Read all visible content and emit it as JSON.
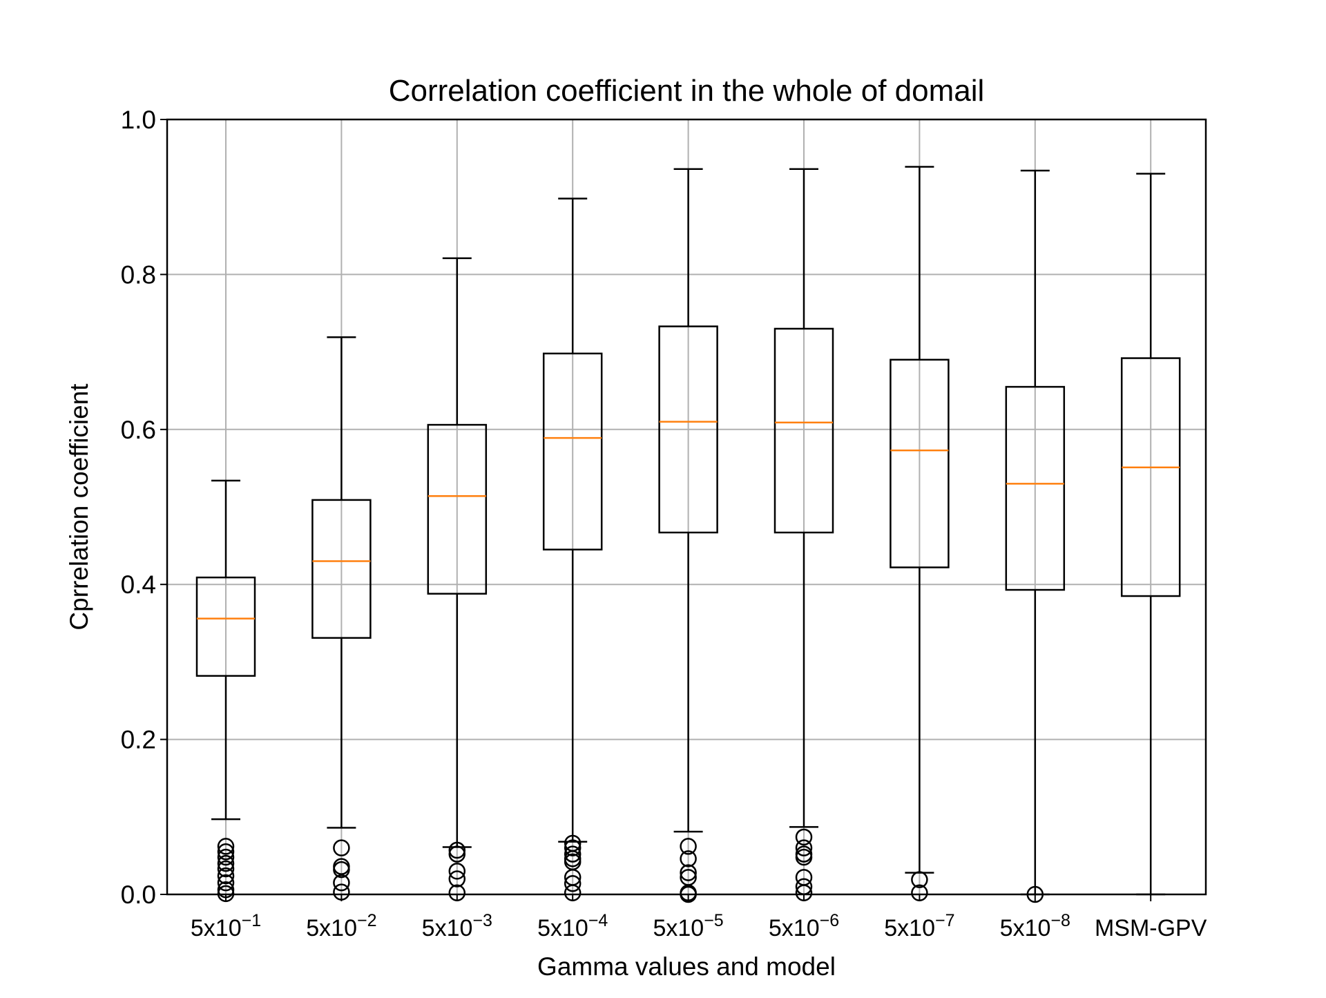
{
  "chart_data": {
    "type": "box",
    "title": "Correlation coefficient in the whole of domail",
    "xlabel": "Gamma values and model",
    "ylabel": "Cprrelation coefficient",
    "ylim": [
      0.0,
      1.0
    ],
    "yticks": [
      "0.0",
      "0.2",
      "0.4",
      "0.6",
      "0.8",
      "1.0"
    ],
    "grid": true,
    "categories": [
      {
        "base": "5x10",
        "exp": "−1"
      },
      {
        "base": "5x10",
        "exp": "−2"
      },
      {
        "base": "5x10",
        "exp": "−3"
      },
      {
        "base": "5x10",
        "exp": "−4"
      },
      {
        "base": "5x10",
        "exp": "−5"
      },
      {
        "base": "5x10",
        "exp": "−6"
      },
      {
        "base": "5x10",
        "exp": "−7"
      },
      {
        "base": "5x10",
        "exp": "−8"
      },
      {
        "base": "MSM-GPV",
        "exp": ""
      }
    ],
    "boxes": [
      {
        "whislo": 0.097,
        "q1": 0.282,
        "med": 0.356,
        "q3": 0.409,
        "whishi": 0.534,
        "fliers": [
          0.062,
          0.055,
          0.048,
          0.04,
          0.033,
          0.024,
          0.015,
          0.006,
          0.001
        ]
      },
      {
        "whislo": 0.086,
        "q1": 0.331,
        "med": 0.43,
        "q3": 0.509,
        "whishi": 0.719,
        "fliers": [
          0.06,
          0.036,
          0.032,
          0.015,
          0.003
        ]
      },
      {
        "whislo": 0.061,
        "q1": 0.388,
        "med": 0.514,
        "q3": 0.606,
        "whishi": 0.821,
        "fliers": [
          0.057,
          0.052,
          0.03,
          0.02,
          0.002
        ]
      },
      {
        "whislo": 0.068,
        "q1": 0.445,
        "med": 0.589,
        "q3": 0.698,
        "whishi": 0.898,
        "fliers": [
          0.066,
          0.06,
          0.052,
          0.046,
          0.042,
          0.022,
          0.014,
          0.002
        ]
      },
      {
        "whislo": 0.081,
        "q1": 0.467,
        "med": 0.61,
        "q3": 0.733,
        "whishi": 0.936,
        "fliers": [
          0.062,
          0.046,
          0.028,
          0.022,
          0.002,
          0.0
        ]
      },
      {
        "whislo": 0.087,
        "q1": 0.467,
        "med": 0.609,
        "q3": 0.73,
        "whishi": 0.936,
        "fliers": [
          0.074,
          0.06,
          0.052,
          0.048,
          0.022,
          0.01,
          0.002
        ]
      },
      {
        "whislo": 0.028,
        "q1": 0.422,
        "med": 0.573,
        "q3": 0.69,
        "whishi": 0.939,
        "fliers": [
          0.019,
          0.002
        ]
      },
      {
        "whislo": 0.0,
        "q1": 0.393,
        "med": 0.53,
        "q3": 0.655,
        "whishi": 0.934,
        "fliers": [
          0.0
        ]
      },
      {
        "whislo": 0.0,
        "q1": 0.385,
        "med": 0.551,
        "q3": 0.692,
        "whishi": 0.93,
        "fliers": []
      }
    ],
    "colors": {
      "box": "#000000",
      "median": "#ff7f0e",
      "grid": "#b0b0b0"
    }
  }
}
